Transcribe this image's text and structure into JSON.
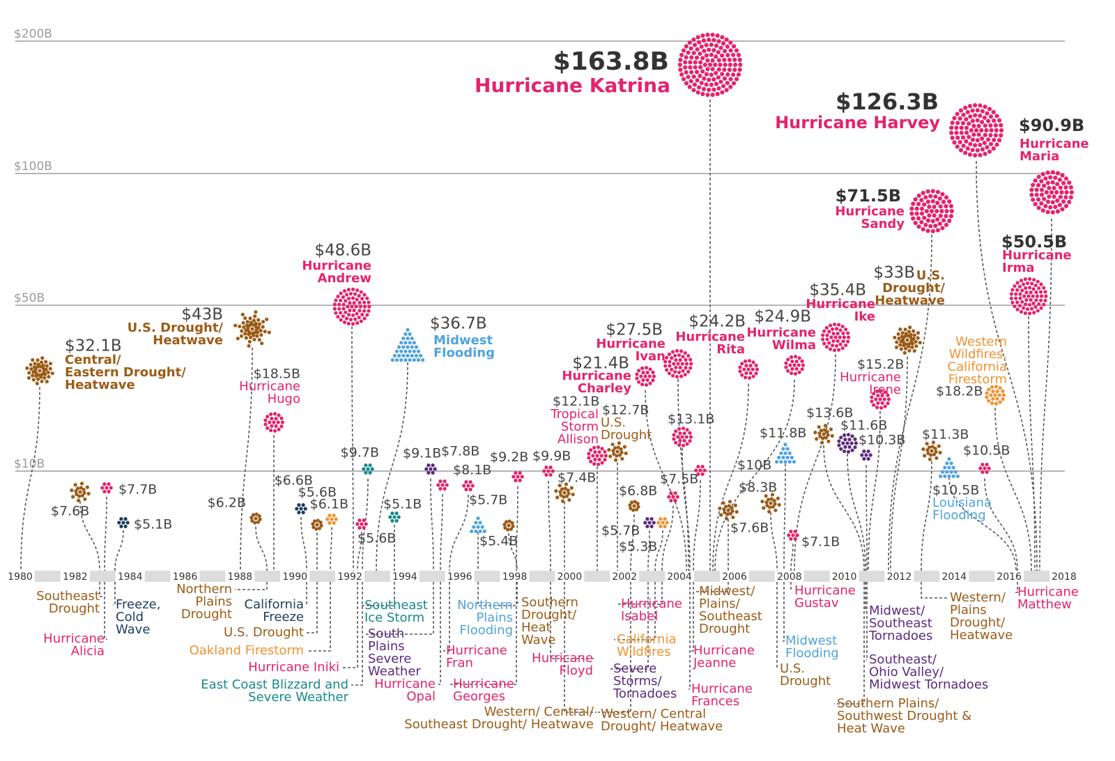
{
  "chart_data": {
    "type": "scatter",
    "title": "",
    "xlabel": "",
    "ylabel": "",
    "x_ticks": [
      "1980",
      "1982",
      "1984",
      "1986",
      "1988",
      "1990",
      "1992",
      "1994",
      "1996",
      "1998",
      "2000",
      "2002",
      "2004",
      "2006",
      "2008",
      "2010",
      "2012",
      "2014",
      "2016",
      "2018"
    ],
    "y_ticks": [
      {
        "value": 10,
        "label": "$10B"
      },
      {
        "value": 50,
        "label": "$50B"
      },
      {
        "value": 100,
        "label": "$100B"
      },
      {
        "value": 200,
        "label": "$200B"
      }
    ],
    "ylim": [
      0,
      200
    ],
    "grid": true,
    "colors": {
      "hurricane": "#e5226c",
      "drought": "#9b5b17",
      "flooding": "#4fa3dd",
      "severe_storm": "#5b2a7e",
      "winter_storm": "#17898a",
      "freeze": "#1b3d5f",
      "wildfire": "#f0922f"
    },
    "events": [
      {
        "year": 1980,
        "cost_billions": 32.1,
        "cost_label": "$32.1B",
        "type": "drought",
        "name_lines": [
          "Central/",
          "Eastern Drought/",
          "Heatwave"
        ]
      },
      {
        "year": 1983,
        "cost_billions": 7.6,
        "cost_label": "$7.6B",
        "type": "drought",
        "name_lines": [
          "Southeast",
          "Drought"
        ]
      },
      {
        "year": 1983,
        "cost_billions": 7.7,
        "cost_label": "$7.7B",
        "type": "hurricane",
        "name_lines": [
          "Hurricane",
          "Alicia"
        ]
      },
      {
        "year": 1983,
        "cost_billions": 5.1,
        "cost_label": "$5.1B",
        "type": "freeze",
        "name_lines": [
          "Freeze,",
          "Cold",
          "Wave"
        ]
      },
      {
        "year": 1988,
        "cost_billions": 43,
        "cost_label": "$43B",
        "type": "drought",
        "name_lines": [
          "U.S. Drought/",
          "Heatwave"
        ]
      },
      {
        "year": 1989,
        "cost_billions": 6.2,
        "cost_label": "$6.2B",
        "type": "drought",
        "name_lines": [
          "Northern",
          "Plains",
          "Drought"
        ]
      },
      {
        "year": 1989,
        "cost_billions": 18.5,
        "cost_label": "$18.5B",
        "type": "hurricane",
        "name_lines": [
          "Hurricane",
          "Hugo"
        ]
      },
      {
        "year": 1990,
        "cost_billions": 6.6,
        "cost_label": "$6.6B",
        "type": "freeze",
        "name_lines": [
          "California",
          "Freeze"
        ]
      },
      {
        "year": 1991,
        "cost_billions": 5.6,
        "cost_label": "$5.6B",
        "type": "drought",
        "name_lines": [
          "U.S. Drought"
        ]
      },
      {
        "year": 1991,
        "cost_billions": 6.1,
        "cost_label": "$6.1B",
        "type": "wildfire",
        "name_lines": [
          "Oakland Firestorm"
        ]
      },
      {
        "year": 1992,
        "cost_billions": 48.6,
        "cost_label": "$48.6B",
        "type": "hurricane",
        "name_lines": [
          "Hurricane",
          "Andrew"
        ]
      },
      {
        "year": 1992,
        "cost_billions": 5.6,
        "cost_label": "$5.6B",
        "type": "hurricane",
        "name_lines": [
          "Hurricane Iniki"
        ]
      },
      {
        "year": 1993,
        "cost_billions": 9.7,
        "cost_label": "$9.7B",
        "type": "winter_storm",
        "name_lines": [
          "East Coast Blizzard and",
          "Severe Weather"
        ]
      },
      {
        "year": 1993,
        "cost_billions": 36.7,
        "cost_label": "$36.7B",
        "type": "flooding",
        "name_lines": [
          "Midwest",
          "Flooding"
        ]
      },
      {
        "year": 1994,
        "cost_billions": 5.1,
        "cost_label": "$5.1B",
        "type": "winter_storm",
        "name_lines": [
          "Southeast",
          "Ice Storm"
        ]
      },
      {
        "year": 1995,
        "cost_billions": 9.1,
        "cost_label": "$9.1B",
        "type": "severe_storm",
        "name_lines": [
          "South",
          "Plains",
          "Severe",
          "Weather"
        ]
      },
      {
        "year": 1995,
        "cost_billions": 7.8,
        "cost_label": "$7.8B",
        "type": "hurricane",
        "name_lines": [
          "Hurricane",
          "Opal"
        ]
      },
      {
        "year": 1996,
        "cost_billions": 8.1,
        "cost_label": "$8.1B",
        "type": "hurricane",
        "name_lines": [
          "Hurricane",
          "Fran"
        ]
      },
      {
        "year": 1997,
        "cost_billions": 5.7,
        "cost_label": "$5.7B",
        "type": "flooding",
        "name_lines": [
          "Northern",
          "Plains",
          "Flooding"
        ]
      },
      {
        "year": 1998,
        "cost_billions": 9.2,
        "cost_label": "$9.2B",
        "type": "hurricane",
        "name_lines": [
          "Hurricane",
          "Georges"
        ]
      },
      {
        "year": 1998,
        "cost_billions": 5.4,
        "cost_label": "$5.4B",
        "type": "drought",
        "name_lines": [
          "Southern",
          "Drought/",
          "Heat",
          "Wave"
        ]
      },
      {
        "year": 1999,
        "cost_billions": 9.9,
        "cost_label": "$9.9B",
        "type": "hurricane",
        "name_lines": [
          "Hurricane",
          "Floyd"
        ]
      },
      {
        "year": 2000,
        "cost_billions": 7.4,
        "cost_label": "$7.4B",
        "type": "drought",
        "name_lines": [
          "Western/ Central/",
          "Southeast Drought/ Heatwave"
        ]
      },
      {
        "year": 2001,
        "cost_billions": 12.1,
        "cost_label": "$12.1B",
        "type": "hurricane",
        "name_lines": [
          "Tropical",
          "Storm",
          "Allison"
        ]
      },
      {
        "year": 2002,
        "cost_billions": 12.7,
        "cost_label": "$12.7B",
        "type": "drought",
        "name_lines": [
          "U.S.",
          "Drought"
        ]
      },
      {
        "year": 2002,
        "cost_billions": 6.8,
        "cost_label": "$6.8B",
        "type": "drought",
        "name_lines": [
          "Western/ Central",
          "Drought/ Heatwave"
        ]
      },
      {
        "year": 2003,
        "cost_billions": 5.7,
        "cost_label": "$5.7B",
        "type": "severe_storm",
        "name_lines": [
          "Severe",
          "Storms/",
          "Tornadoes"
        ]
      },
      {
        "year": 2003,
        "cost_billions": 5.3,
        "cost_label": "$5.3B",
        "type": "wildfire",
        "name_lines": [
          "California",
          "Wildfires"
        ]
      },
      {
        "year": 2003,
        "cost_billions": 7.5,
        "cost_label": "$7.5B",
        "type": "hurricane",
        "name_lines": [
          "Hurricane",
          "Isabel"
        ]
      },
      {
        "year": 2004,
        "cost_billions": 21.4,
        "cost_label": "$21.4B",
        "type": "hurricane",
        "name_lines": [
          "Hurricane",
          "Charley"
        ]
      },
      {
        "year": 2004,
        "cost_billions": 27.5,
        "cost_label": "$27.5B",
        "type": "hurricane",
        "name_lines": [
          "Hurricane",
          "Ivan"
        ]
      },
      {
        "year": 2004,
        "cost_billions": 13.1,
        "cost_label": "$13.1B",
        "type": "hurricane",
        "name_lines": [
          "Hurricane",
          "Frances"
        ]
      },
      {
        "year": 2004,
        "cost_billions": 10,
        "cost_label": "$10B",
        "type": "hurricane",
        "name_lines": [
          "Hurricane",
          "Jeanne"
        ]
      },
      {
        "year": 2005,
        "cost_billions": 163.8,
        "cost_label": "$163.8B",
        "type": "hurricane",
        "name_lines": [
          "Hurricane Katrina"
        ]
      },
      {
        "year": 2005,
        "cost_billions": 24.2,
        "cost_label": "$24.2B",
        "type": "hurricane",
        "name_lines": [
          "Hurricane",
          "Rita"
        ]
      },
      {
        "year": 2005,
        "cost_billions": 24.9,
        "cost_label": "$24.9B",
        "type": "hurricane",
        "name_lines": [
          "Hurricane",
          "Wilma"
        ]
      },
      {
        "year": 2006,
        "cost_billions": 7.6,
        "cost_label": "$7.6B",
        "type": "drought",
        "name_lines": [
          "Midwest/",
          "Plains/",
          "Southeast",
          "Drought"
        ]
      },
      {
        "year": 2008,
        "cost_billions": 8.3,
        "cost_label": "$8.3B",
        "type": "drought",
        "name_lines": [
          "U.S.",
          "Drought"
        ]
      },
      {
        "year": 2008,
        "cost_billions": 11.8,
        "cost_label": "$11.8B",
        "type": "flooding",
        "name_lines": [
          "Midwest",
          "Flooding"
        ]
      },
      {
        "year": 2008,
        "cost_billions": 7.1,
        "cost_label": "$7.1B",
        "type": "hurricane",
        "name_lines": [
          "Hurricane",
          "Gustav"
        ]
      },
      {
        "year": 2008,
        "cost_billions": 35.4,
        "cost_label": "$35.4B",
        "type": "hurricane",
        "name_lines": [
          "Hurricane",
          "Ike"
        ]
      },
      {
        "year": 2011,
        "cost_billions": 13.6,
        "cost_label": "$13.6B",
        "type": "drought",
        "name_lines": [
          "Southern Plains/",
          "Southwest Drought &",
          "Heat Wave"
        ]
      },
      {
        "year": 2011,
        "cost_billions": 11.6,
        "cost_label": "$11.6B",
        "type": "severe_storm",
        "name_lines": [
          "Midwest/",
          "Southeast",
          "Tornadoes"
        ]
      },
      {
        "year": 2011,
        "cost_billions": 10.3,
        "cost_label": "$10.3B",
        "type": "severe_storm",
        "name_lines": [
          "Southeast/",
          "Ohio Valley/",
          "Midwest Tornadoes"
        ]
      },
      {
        "year": 2011,
        "cost_billions": 15.2,
        "cost_label": "$15.2B",
        "type": "hurricane",
        "name_lines": [
          "Hurricane",
          "Irene"
        ]
      },
      {
        "year": 2012,
        "cost_billions": 71.5,
        "cost_label": "$71.5B",
        "type": "hurricane",
        "name_lines": [
          "Hurricane",
          "Sandy"
        ]
      },
      {
        "year": 2012,
        "cost_billions": 33,
        "cost_label": "$33B",
        "type": "drought",
        "name_lines": [
          "U.S.",
          "Drought/",
          "Heatwave"
        ]
      },
      {
        "year": 2013,
        "cost_billions": 11.3,
        "cost_label": "$11.3B",
        "type": "drought",
        "name_lines": [
          "Western/",
          "Plains",
          "Drought/",
          "Heatwave"
        ]
      },
      {
        "year": 2016,
        "cost_billions": 10.5,
        "cost_label": "$10.5B",
        "type": "flooding",
        "name_lines": [
          "Louisiana",
          "Flooding"
        ]
      },
      {
        "year": 2016,
        "cost_billions": 10.5,
        "cost_label": "$10.5B",
        "type": "hurricane",
        "name_lines": [
          "Hurricane",
          "Matthew"
        ]
      },
      {
        "year": 2017,
        "cost_billions": 18.2,
        "cost_label": "$18.2B",
        "type": "wildfire",
        "name_lines": [
          "Western",
          "Wildfires,",
          "California",
          "Firestorm"
        ]
      },
      {
        "year": 2017,
        "cost_billions": 50.5,
        "cost_label": "$50.5B",
        "type": "hurricane",
        "name_lines": [
          "Hurricane",
          "Irma"
        ]
      },
      {
        "year": 2017,
        "cost_billions": 126.3,
        "cost_label": "$126.3B",
        "type": "hurricane",
        "name_lines": [
          "Hurricane Harvey"
        ]
      },
      {
        "year": 2017,
        "cost_billions": 90.9,
        "cost_label": "$90.9B",
        "type": "hurricane",
        "name_lines": [
          "Hurricane",
          "Maria"
        ]
      }
    ]
  }
}
